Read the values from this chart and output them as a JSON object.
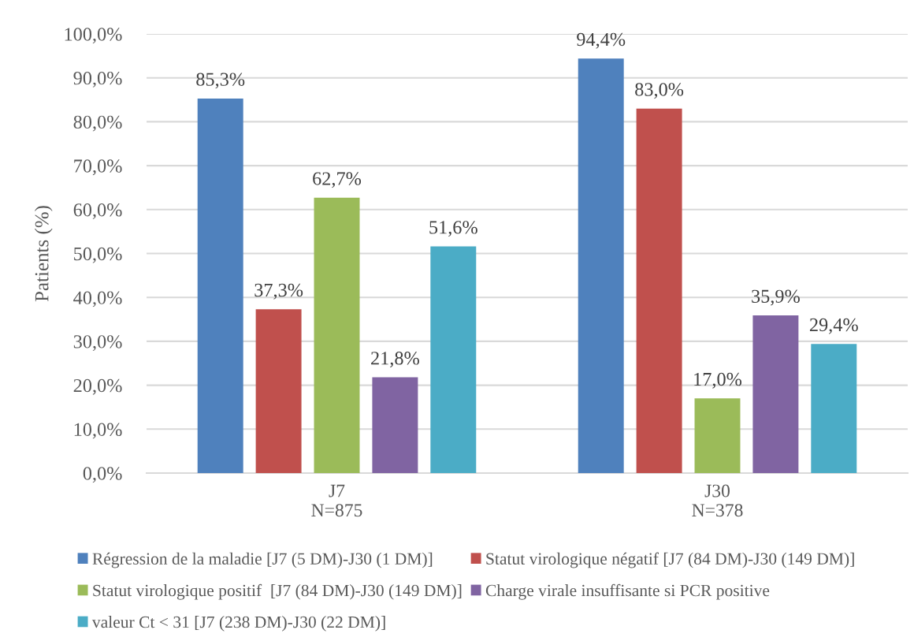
{
  "chart_data": {
    "type": "bar",
    "ylabel": "Patients (%)",
    "categories": [
      "J7\nN=875",
      "J30\nN=378"
    ],
    "series": [
      {
        "name": "Régression de la maladie [J7 (5 DM)-J30 (1 DM)]",
        "color": "#4f81bd",
        "values": [
          85.3,
          94.4
        ],
        "value_labels": [
          "85,3%",
          "94,4%"
        ]
      },
      {
        "name": "Statut virologique négatif [J7 (84 DM)-J30 (149 DM)]",
        "color": "#c0504d",
        "values": [
          37.3,
          83.0
        ],
        "value_labels": [
          "37,3%",
          "83,0%"
        ]
      },
      {
        "name": "Statut virologique positif  [J7 (84 DM)-J30 (149 DM)]",
        "color": "#9bbb59",
        "values": [
          62.7,
          17.0
        ],
        "value_labels": [
          "62,7%",
          "17,0%"
        ]
      },
      {
        "name": "Charge virale insuffisante si PCR positive",
        "color": "#8064a2",
        "values": [
          21.8,
          35.9
        ],
        "value_labels": [
          "21,8%",
          "35,9%"
        ]
      },
      {
        "name": "valeur Ct < 31 [J7 (238 DM)-J30 (22 DM)]",
        "color": "#4bacc6",
        "values": [
          51.6,
          29.4
        ],
        "value_labels": [
          "51,6%",
          "29,4%"
        ]
      }
    ],
    "ylim": [
      0,
      100
    ],
    "yticks": [
      {
        "value": 0,
        "label": "0,0%"
      },
      {
        "value": 10,
        "label": "10,0%"
      },
      {
        "value": 20,
        "label": "20,0%"
      },
      {
        "value": 30,
        "label": "30,0%"
      },
      {
        "value": 40,
        "label": "40,0%"
      },
      {
        "value": 50,
        "label": "50,0%"
      },
      {
        "value": 60,
        "label": "60,0%"
      },
      {
        "value": 70,
        "label": "70,0%"
      },
      {
        "value": 80,
        "label": "80,0%"
      },
      {
        "value": 90,
        "label": "90,0%"
      },
      {
        "value": 100,
        "label": "100,0%"
      }
    ],
    "grid": "y",
    "legend": "bottom"
  }
}
